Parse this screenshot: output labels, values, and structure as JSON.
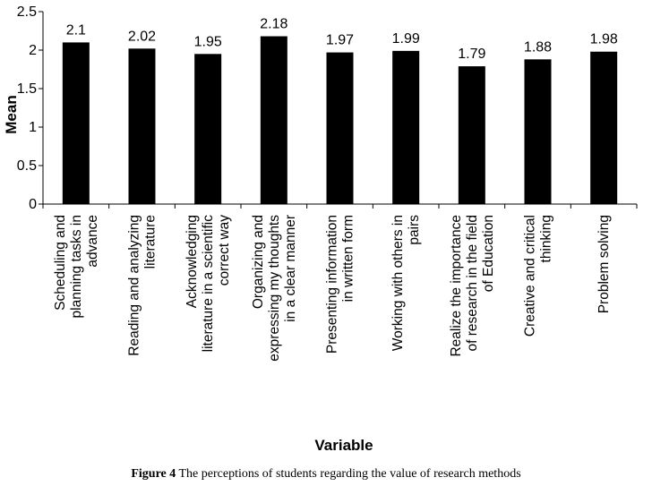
{
  "caption": {
    "prefix": "Figure 4",
    "text": " The perceptions of students regarding the value of research methods"
  },
  "chart_data": {
    "type": "bar",
    "xlabel": "Variable",
    "ylabel": "Mean",
    "ylim": [
      0,
      2.5
    ],
    "yticks": [
      "0",
      "0.5",
      "1",
      "1.5",
      "2",
      "2.5"
    ],
    "grid": false,
    "bar_color": "#000000",
    "categories": [
      [
        "Scheduling and",
        "planning tasks in",
        "advance"
      ],
      [
        "Reading and analyzing",
        "literature"
      ],
      [
        "Acknowledging",
        "literature in a scientific",
        "correct way"
      ],
      [
        "Organizing and",
        "expressing my thoughts",
        "in a clear manner"
      ],
      [
        "Presenting information",
        "in written form"
      ],
      [
        "Working with others in",
        "pairs"
      ],
      [
        "Realize the importance",
        "of research in the field",
        "of Education"
      ],
      [
        "Creative and critical",
        "thinking"
      ],
      [
        "Problem solving"
      ]
    ],
    "values": [
      2.1,
      2.02,
      1.95,
      2.18,
      1.97,
      1.99,
      1.79,
      1.88,
      1.98
    ],
    "value_labels": [
      "2.1",
      "2.02",
      "1.95",
      "2.18",
      "1.97",
      "1.99",
      "1.79",
      "1.88",
      "1.98"
    ]
  }
}
